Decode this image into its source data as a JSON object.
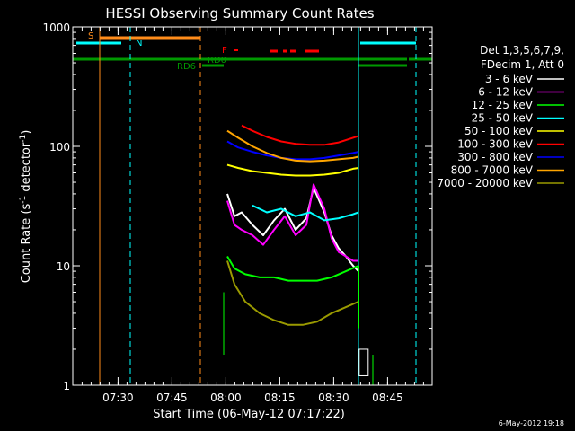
{
  "chart_data": {
    "type": "line",
    "title": "HESSI Observing Summary Count Rates",
    "xlabel": "Start Time (06-May-12 07:17:22)",
    "ylabel_main": "Count Rate (s",
    "ylabel_sup": "-1",
    "ylabel_rest": " detector",
    "ylabel_sup2": "-1",
    "ylabel_end": ")",
    "yscale": "log",
    "ylim": [
      1,
      1000
    ],
    "xlim_minutes": [
      0,
      100
    ],
    "x_tick_labels": [
      {
        "label": "07:30",
        "min": 12.6
      },
      {
        "label": "07:45",
        "min": 27.6
      },
      {
        "label": "08:00",
        "min": 42.6
      },
      {
        "label": "08:15",
        "min": 57.6
      },
      {
        "label": "08:30",
        "min": 72.6
      },
      {
        "label": "08:45",
        "min": 87.6
      }
    ],
    "y_tick_labels": [
      {
        "label": "1",
        "value": 1
      },
      {
        "label": "10",
        "value": 10
      },
      {
        "label": "100",
        "value": 100
      },
      {
        "label": "1000",
        "value": 1000
      }
    ],
    "legend_header": [
      "Det 1,3,5,6,7,9,",
      "FDecim 1, Att 0"
    ],
    "legend_placement": "right",
    "series": [
      {
        "name": "3 - 6 keV",
        "color": "#ffffff",
        "x": [
          43,
          45,
          47,
          50,
          53,
          56,
          59,
          62,
          65,
          67,
          70,
          72,
          74,
          76,
          78,
          79.5
        ],
        "y": [
          40,
          26,
          28,
          22,
          18,
          24,
          30,
          20,
          25,
          45,
          28,
          18,
          14,
          12,
          10,
          9
        ]
      },
      {
        "name": "6 - 12 keV",
        "color": "#ff00ff",
        "x": [
          43,
          45,
          47,
          50,
          53,
          56,
          59,
          62,
          65,
          67,
          70,
          72,
          74,
          76,
          78,
          79.5
        ],
        "y": [
          35,
          22,
          20,
          18,
          15,
          20,
          26,
          18,
          22,
          48,
          30,
          17,
          13,
          12,
          11,
          11
        ]
      },
      {
        "name": "12 - 25 keV",
        "color": "#00ff00",
        "x": [
          43,
          45,
          48,
          52,
          56,
          60,
          64,
          68,
          72,
          76,
          79.5
        ],
        "y": [
          12,
          9.5,
          8.5,
          8,
          8,
          7.5,
          7.5,
          7.5,
          8,
          9,
          10
        ]
      },
      {
        "name": "25 - 50 keV",
        "color": "#00ffff",
        "x": [
          50,
          54,
          58,
          62,
          66,
          70,
          74,
          78,
          79.5
        ],
        "y": [
          32,
          28,
          30,
          26,
          28,
          24,
          25,
          27,
          28
        ]
      },
      {
        "name": "50 - 100 keV",
        "color": "#ffff00",
        "x": [
          43,
          46,
          50,
          54,
          58,
          62,
          66,
          70,
          74,
          78,
          79.5
        ],
        "y": [
          70,
          66,
          62,
          60,
          58,
          57,
          57,
          58,
          60,
          65,
          66
        ]
      },
      {
        "name": "100 - 300 keV",
        "color": "#ff0000",
        "x": [
          47,
          50,
          54,
          58,
          62,
          66,
          70,
          74,
          78,
          79.5
        ],
        "y": [
          150,
          135,
          120,
          110,
          105,
          103,
          103,
          108,
          118,
          122
        ]
      },
      {
        "name": "300 - 800 keV",
        "color": "#0000ff",
        "x": [
          43,
          46,
          50,
          54,
          58,
          62,
          66,
          70,
          74,
          78,
          79.5
        ],
        "y": [
          110,
          98,
          90,
          84,
          80,
          78,
          78,
          80,
          84,
          88,
          90
        ]
      },
      {
        "name": "800 - 7000 keV",
        "color": "#ffa500",
        "x": [
          43,
          46,
          50,
          54,
          58,
          62,
          66,
          70,
          74,
          78,
          79.5
        ],
        "y": [
          135,
          118,
          100,
          88,
          80,
          76,
          75,
          76,
          78,
          80,
          82
        ]
      },
      {
        "name": "7000 - 20000 keV",
        "color": "#9a9a00",
        "x": [
          43,
          45,
          48,
          52,
          56,
          60,
          64,
          68,
          72,
          76,
          79.5
        ],
        "y": [
          11,
          7,
          5,
          4,
          3.5,
          3.2,
          3.2,
          3.4,
          4,
          4.5,
          5
        ]
      }
    ],
    "flag_labels": {
      "saa": "S",
      "night": "N",
      "rd6": "RD6",
      "rd0": "RD0",
      "flare": "F"
    },
    "timestamp": "6-May-2012 19:18"
  }
}
